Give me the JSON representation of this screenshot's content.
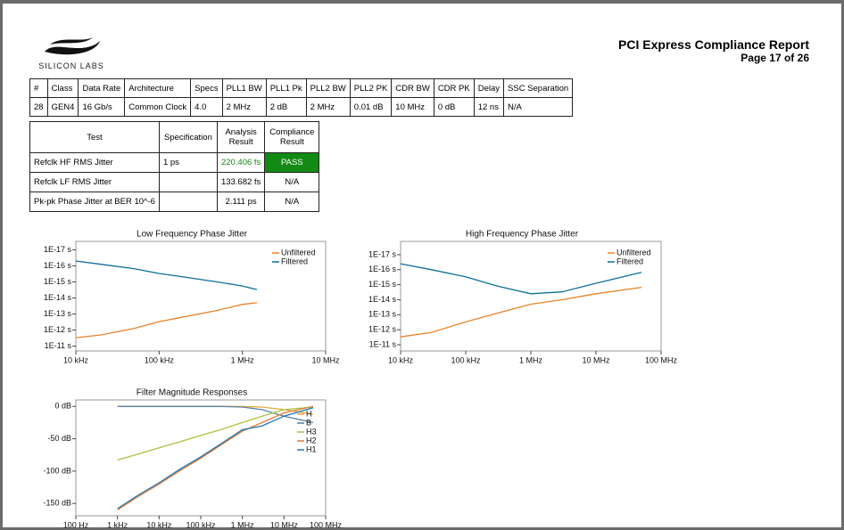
{
  "header": {
    "logo": "SILICON LABS",
    "title": "PCI Express Compliance Report",
    "page": "Page 17 of 26"
  },
  "config_table": {
    "headers": [
      "#",
      "Class",
      "Data Rate",
      "Architecture",
      "Specs",
      "PLL1 BW",
      "PLL1 Pk",
      "PLL2 BW",
      "PLL2 PK",
      "CDR BW",
      "CDR PK",
      "Delay",
      "SSC Separation"
    ],
    "rows": [
      [
        "28",
        "GEN4",
        "16 Gb/s",
        "Common Clock",
        "4.0",
        "2 MHz",
        "2 dB",
        "2 MHz",
        "0.01 dB",
        "10 MHz",
        "0 dB",
        "12 ns",
        "N/A"
      ]
    ]
  },
  "results_table": {
    "headers": [
      "Test",
      "Specification",
      "Analysis Result",
      "Compliance Result"
    ],
    "rows": [
      [
        "Refclk HF RMS Jitter",
        "1 ps",
        "220.406 fs",
        "PASS"
      ],
      [
        "Refclk LF RMS Jitter",
        null,
        "133.682 fs",
        "N/A"
      ],
      [
        "Pk-pk Phase Jitter at BER 10^-6",
        null,
        "2.111 ps",
        "N/A"
      ]
    ]
  },
  "chart_data": [
    {
      "type": "line",
      "title": "Low Frequency Phase Jitter",
      "xscale": "log",
      "yscale": "log",
      "legend": "upper right",
      "x": [
        10000,
        20000,
        50000,
        100000,
        200000,
        500000,
        1000000,
        1500000
      ],
      "series": [
        {
          "name": "Unfiltered",
          "color": "#e8832a",
          "values": [
            3e-12,
            2e-12,
            8e-13,
            3e-13,
            1.5e-13,
            6e-14,
            2.5e-14,
            2e-14
          ]
        },
        {
          "name": "Filtered",
          "color": "#0e6e9a",
          "values": [
            5e-17,
            8e-17,
            1.5e-16,
            3e-16,
            5e-16,
            1e-15,
            1.8e-15,
            3e-15
          ]
        }
      ],
      "xlim": [
        10000,
        10000000
      ],
      "xticks": [
        {
          "value": 10000,
          "label": "10 kHz"
        },
        {
          "value": 100000,
          "label": "100 kHz"
        },
        {
          "value": 1000000,
          "label": "1 MHz"
        },
        {
          "value": 10000000,
          "label": "10 MHz"
        }
      ],
      "ylim": [
        2e-11,
        3e-18
      ],
      "yticks": [
        {
          "value": 1e-11,
          "label": "1E-11 s"
        },
        {
          "value": 1e-12,
          "label": "1E-12 s"
        },
        {
          "value": 1e-13,
          "label": "1E-13 s"
        },
        {
          "value": 1e-14,
          "label": "1E-14 s"
        },
        {
          "value": 1e-15,
          "label": "1E-15 s"
        },
        {
          "value": 1e-16,
          "label": "1E-16 s"
        },
        {
          "value": 1e-17,
          "label": "1E-17 s"
        }
      ]
    },
    {
      "type": "line",
      "title": "High Frequency Phase Jitter",
      "xscale": "log",
      "yscale": "log",
      "legend": "upper right",
      "x": [
        10000,
        30000,
        100000,
        300000,
        1000000,
        3000000,
        10000000,
        50000000
      ],
      "series": [
        {
          "name": "Unfiltered",
          "color": "#e8832a",
          "values": [
            3e-12,
            1.5e-12,
            3e-13,
            8e-14,
            2e-14,
            1e-14,
            4e-15,
            1.5e-15
          ]
        },
        {
          "name": "Filtered",
          "color": "#0e6e9a",
          "values": [
            4e-17,
            1e-16,
            3e-16,
            1.2e-15,
            4e-15,
            3e-15,
            8e-16,
            1.5e-16
          ]
        }
      ],
      "xlim": [
        10000,
        100000000
      ],
      "xticks": [
        {
          "value": 10000,
          "label": "10 kHz"
        },
        {
          "value": 100000,
          "label": "100 kHz"
        },
        {
          "value": 1000000,
          "label": "1 MHz"
        },
        {
          "value": 10000000,
          "label": "10 MHz"
        },
        {
          "value": 100000000,
          "label": "100 MHz"
        }
      ],
      "ylim": [
        2.6e-11,
        1.3e-18
      ],
      "yticks": [
        {
          "value": 1e-11,
          "label": "1E-11 s"
        },
        {
          "value": 1e-12,
          "label": "1E-12 s"
        },
        {
          "value": 1e-13,
          "label": "1E-13 s"
        },
        {
          "value": 1e-14,
          "label": "1E-14 s"
        },
        {
          "value": 1e-15,
          "label": "1E-15 s"
        },
        {
          "value": 1e-16,
          "label": "1E-16 s"
        },
        {
          "value": 1e-17,
          "label": "1E-17 s"
        }
      ]
    },
    {
      "type": "line",
      "title": "Filter Magnitude Responses",
      "xscale": "log",
      "yscale": "linear",
      "legend": "right",
      "x": [
        1000,
        3000,
        10000,
        30000,
        100000,
        300000,
        1000000,
        3000000,
        10000000,
        50000000
      ],
      "series": [
        {
          "name": "H",
          "color": "#e8a838",
          "values": [
            0,
            0,
            0,
            0,
            0,
            0,
            0,
            -1,
            -5,
            -12
          ]
        },
        {
          "name": "B",
          "color": "#5b7fa8",
          "values": [
            0,
            0,
            0,
            0,
            0,
            0,
            -1,
            -5,
            -15,
            -25
          ]
        },
        {
          "name": "H3",
          "color": "#a9c23f",
          "values": [
            -83,
            -74,
            -64,
            -55,
            -45,
            -36,
            -25,
            -15,
            -5,
            -1
          ]
        },
        {
          "name": "H2",
          "color": "#e07b39",
          "values": [
            -160,
            -140,
            -120,
            -100,
            -80,
            -60,
            -38,
            -25,
            -10,
            0
          ]
        },
        {
          "name": "H1",
          "color": "#1f77b4",
          "values": [
            -158,
            -138,
            -118,
            -98,
            -78,
            -58,
            -36,
            -30,
            -15,
            -2
          ]
        }
      ],
      "xlim": [
        100,
        100000000
      ],
      "xticks": [
        {
          "value": 100,
          "label": "100 Hz"
        },
        {
          "value": 1000,
          "label": "1 kHz"
        },
        {
          "value": 10000,
          "label": "10 kHz"
        },
        {
          "value": 100000,
          "label": "100 kHz"
        },
        {
          "value": 1000000,
          "label": "1 MHz"
        },
        {
          "value": 10000000,
          "label": "10 MHz"
        },
        {
          "value": 100000000,
          "label": "100 MHz"
        }
      ],
      "ylim": [
        -169,
        10
      ],
      "yticks": [
        {
          "value": 0,
          "label": "0 dB"
        },
        {
          "value": -50,
          "label": "-50 dB"
        },
        {
          "value": -100,
          "label": "-100 dB"
        },
        {
          "value": -150,
          "label": "-150 dB"
        }
      ]
    }
  ]
}
